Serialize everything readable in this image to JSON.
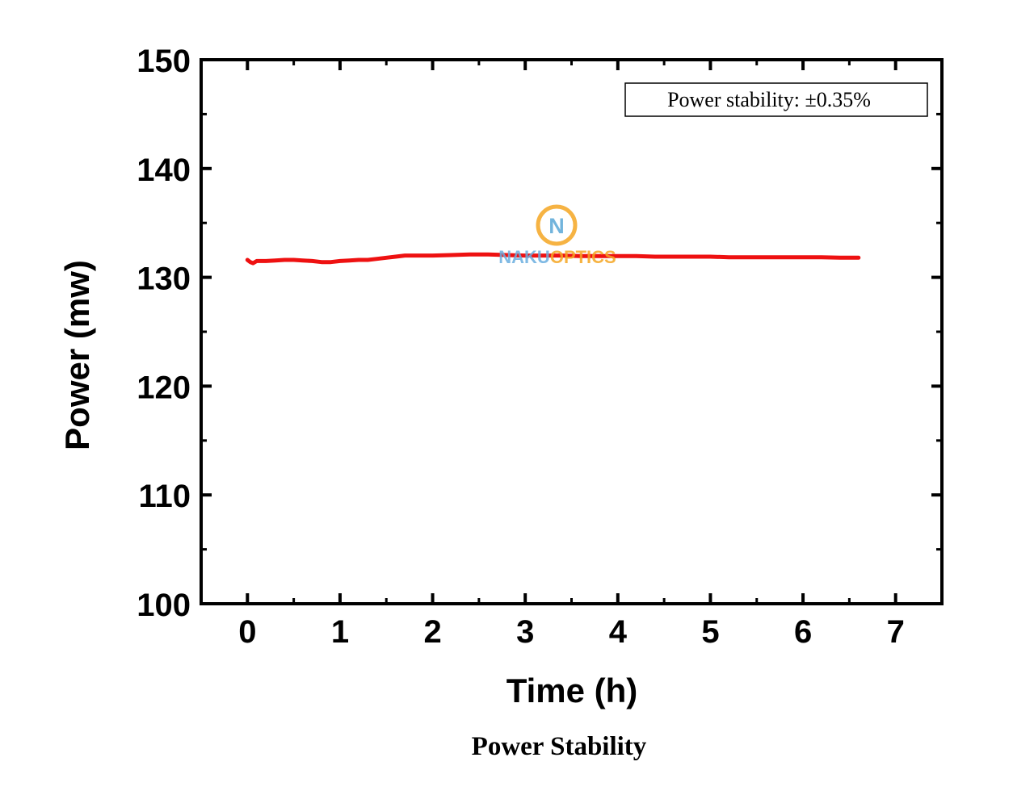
{
  "chart_data": {
    "type": "line",
    "title": "",
    "caption": "Power Stability",
    "xlabel": "Time (h)",
    "ylabel": "Power (mw)",
    "xlim": [
      -0.5,
      7.5
    ],
    "ylim": [
      100,
      150
    ],
    "xticks": [
      0,
      1,
      2,
      3,
      4,
      5,
      6,
      7
    ],
    "xtick_labels": [
      "0",
      "1",
      "2",
      "3",
      "4",
      "5",
      "6",
      "7"
    ],
    "yticks": [
      100,
      110,
      120,
      130,
      140,
      150
    ],
    "ytick_labels": [
      "100",
      "110",
      "120",
      "130",
      "140",
      "150"
    ],
    "x_minor_step": 0.5,
    "y_minor_step": 5,
    "grid": false,
    "legend_position": "top-right",
    "annotation": "Power stability: ±0.35%",
    "series": [
      {
        "name": "Power",
        "color": "#ee1111",
        "x": [
          0.0,
          0.03,
          0.06,
          0.1,
          0.15,
          0.2,
          0.3,
          0.4,
          0.5,
          0.6,
          0.7,
          0.8,
          0.9,
          1.0,
          1.1,
          1.2,
          1.3,
          1.4,
          1.5,
          1.6,
          1.7,
          1.8,
          1.9,
          2.0,
          2.2,
          2.4,
          2.6,
          2.8,
          3.0,
          3.2,
          3.4,
          3.6,
          3.8,
          4.0,
          4.2,
          4.4,
          4.6,
          4.8,
          5.0,
          5.2,
          5.4,
          5.6,
          5.8,
          6.0,
          6.2,
          6.4,
          6.6
        ],
        "values": [
          131.6,
          131.4,
          131.3,
          131.5,
          131.5,
          131.5,
          131.55,
          131.6,
          131.6,
          131.55,
          131.5,
          131.4,
          131.4,
          131.5,
          131.55,
          131.6,
          131.6,
          131.7,
          131.8,
          131.9,
          132.0,
          132.0,
          132.0,
          132.0,
          132.05,
          132.1,
          132.1,
          132.05,
          132.0,
          132.0,
          132.0,
          131.95,
          131.95,
          131.95,
          131.95,
          131.9,
          131.9,
          131.9,
          131.9,
          131.85,
          131.85,
          131.85,
          131.85,
          131.85,
          131.85,
          131.8,
          131.8
        ]
      }
    ]
  },
  "watermark": {
    "logo_letter": "N",
    "text_part1": "NAKU",
    "text_part2": "OPTICS",
    "ring_color": "#f5a623",
    "letter_color": "#5aa7d6",
    "text_color1": "#6aaee0",
    "text_color2": "#f5a623"
  }
}
